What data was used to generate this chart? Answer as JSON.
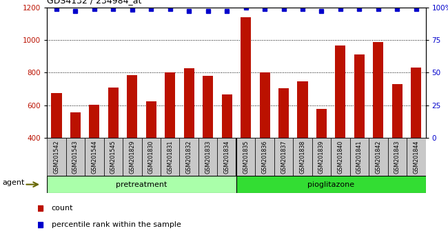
{
  "title": "GDS4132 / 234984_at",
  "categories": [
    "GSM201542",
    "GSM201543",
    "GSM201544",
    "GSM201545",
    "GSM201829",
    "GSM201830",
    "GSM201831",
    "GSM201832",
    "GSM201833",
    "GSM201834",
    "GSM201835",
    "GSM201836",
    "GSM201837",
    "GSM201838",
    "GSM201839",
    "GSM201840",
    "GSM201841",
    "GSM201842",
    "GSM201843",
    "GSM201844"
  ],
  "counts": [
    675,
    558,
    602,
    710,
    785,
    625,
    803,
    825,
    780,
    668,
    1140,
    800,
    703,
    748,
    578,
    965,
    910,
    988,
    730,
    830
  ],
  "percentile_ranks": [
    99,
    97,
    99,
    99,
    98,
    99,
    99,
    97,
    97,
    97,
    100,
    99,
    99,
    99,
    97,
    99,
    99,
    99,
    99,
    99
  ],
  "group_labels": [
    "pretreatment",
    "pioglitazone"
  ],
  "group_split": 10,
  "group_color_pre": "#aaffaa",
  "group_color_pio": "#33dd33",
  "bar_color": "#BB1100",
  "dot_color": "#0000CC",
  "ylim_left": [
    400,
    1200
  ],
  "ylim_right": [
    0,
    100
  ],
  "yticks_left": [
    400,
    600,
    800,
    1000,
    1200
  ],
  "yticks_right": [
    0,
    25,
    50,
    75,
    100
  ],
  "grid_values": [
    600,
    800,
    1000
  ],
  "plot_bg_color": "#ffffff",
  "tick_box_color": "#C8C8C8",
  "legend_count_label": "count",
  "legend_pct_label": "percentile rank within the sample",
  "agent_label": "agent"
}
